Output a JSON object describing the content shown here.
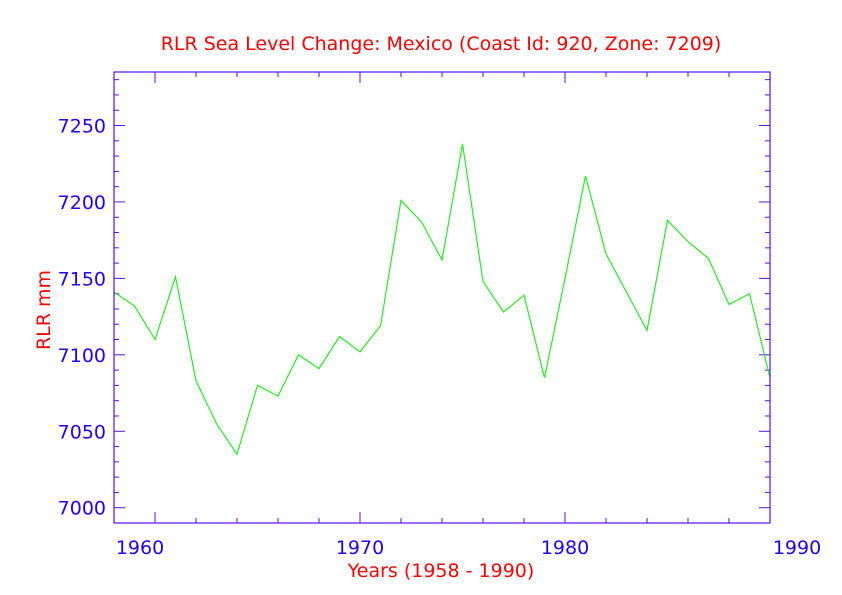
{
  "chart_data": {
    "type": "line",
    "title": "RLR Sea Level Change: Mexico (Coast Id: 920, Zone: 7209)",
    "xlabel": "Years (1958 - 1990)",
    "ylabel": "RLR mm",
    "xlim": [
      1958,
      1990
    ],
    "ylim": [
      6990,
      7285
    ],
    "x_ticks": [
      1960,
      1970,
      1980,
      1990
    ],
    "x_tick_labels": [
      "1960",
      "1970",
      "1980",
      "1990"
    ],
    "y_ticks": [
      7000,
      7050,
      7100,
      7150,
      7200,
      7250
    ],
    "y_tick_labels": [
      "7000",
      "7050",
      "7100",
      "7150",
      "7200",
      "7250"
    ],
    "x_minor_step": 2,
    "y_minor_step": 10,
    "grid": false,
    "colors": {
      "series": "#22ee22",
      "axes": "#5511ee",
      "ticklabels": "#2200ff",
      "text": "#ff0000"
    },
    "series": [
      {
        "name": "RLR",
        "x": [
          1958,
          1959,
          1960,
          1961,
          1962,
          1963,
          1964,
          1965,
          1966,
          1967,
          1968,
          1969,
          1970,
          1971,
          1972,
          1973,
          1974,
          1975,
          1976,
          1977,
          1978,
          1979,
          1980,
          1981,
          1982,
          1983,
          1984,
          1985,
          1986,
          1987,
          1988,
          1989,
          1990
        ],
        "y": [
          7141,
          7132,
          7110,
          7151,
          7083,
          7055,
          7035,
          7080,
          7073,
          7100,
          7091,
          7112,
          7102,
          7119,
          7201,
          7187,
          7162,
          7238,
          7148,
          7128,
          7139,
          7085,
          7150,
          7217,
          7166,
          7141,
          7116,
          7188,
          7174,
          7163,
          7133,
          7140,
          7085
        ]
      }
    ]
  }
}
